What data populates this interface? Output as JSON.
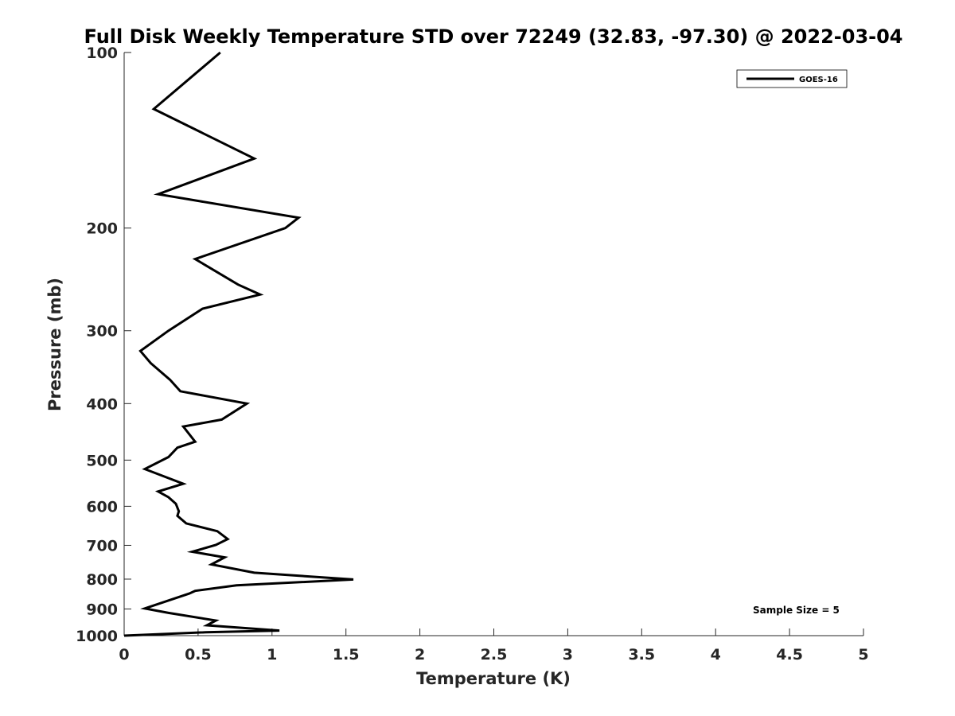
{
  "chart_data": {
    "type": "line",
    "title": "Full Disk Weekly Temperature STD over 72249 (32.83, -97.30) @ 2022-03-04",
    "xlabel": "Temperature (K)",
    "ylabel": "Pressure (mb)",
    "xlim": [
      0,
      5
    ],
    "ylim": [
      100,
      1000
    ],
    "yscale": "log",
    "y_reversed": true,
    "grid": false,
    "legend_position": "top-right",
    "xticks": [
      "0",
      "0.5",
      "1",
      "1.5",
      "2",
      "2.5",
      "3",
      "3.5",
      "4",
      "4.5",
      "5"
    ],
    "yticks": [
      "100",
      "200",
      "300",
      "400",
      "500",
      "600",
      "700",
      "800",
      "900",
      "1000"
    ],
    "series": [
      {
        "name": "GOES-16",
        "color": "#000000",
        "points": [
          [
            0.65,
            100
          ],
          [
            0.2,
            125
          ],
          [
            0.88,
            152
          ],
          [
            0.23,
            175
          ],
          [
            1.18,
            192
          ],
          [
            1.09,
            200
          ],
          [
            0.48,
            226
          ],
          [
            0.77,
            250
          ],
          [
            0.92,
            260
          ],
          [
            0.53,
            275
          ],
          [
            0.3,
            300
          ],
          [
            0.11,
            325
          ],
          [
            0.18,
            341
          ],
          [
            0.31,
            364
          ],
          [
            0.38,
            381
          ],
          [
            0.83,
            400
          ],
          [
            0.66,
            426
          ],
          [
            0.4,
            438
          ],
          [
            0.48,
            465
          ],
          [
            0.36,
            476
          ],
          [
            0.3,
            494
          ],
          [
            0.14,
            518
          ],
          [
            0.4,
            549
          ],
          [
            0.23,
            566
          ],
          [
            0.3,
            579
          ],
          [
            0.35,
            594
          ],
          [
            0.37,
            612
          ],
          [
            0.36,
            623
          ],
          [
            0.42,
            642
          ],
          [
            0.63,
            662
          ],
          [
            0.7,
            683
          ],
          [
            0.62,
            699
          ],
          [
            0.46,
            718
          ],
          [
            0.68,
            734
          ],
          [
            0.59,
            755
          ],
          [
            0.88,
            780
          ],
          [
            1.55,
            801
          ],
          [
            0.76,
            820
          ],
          [
            0.48,
            838
          ],
          [
            0.44,
            847
          ],
          [
            0.14,
            898
          ],
          [
            0.3,
            914
          ],
          [
            0.62,
            942
          ],
          [
            0.56,
            960
          ],
          [
            1.05,
            980
          ],
          [
            0.55,
            987
          ],
          [
            0.0,
            1000
          ]
        ]
      }
    ],
    "annotation": "Sample Size = 5"
  }
}
